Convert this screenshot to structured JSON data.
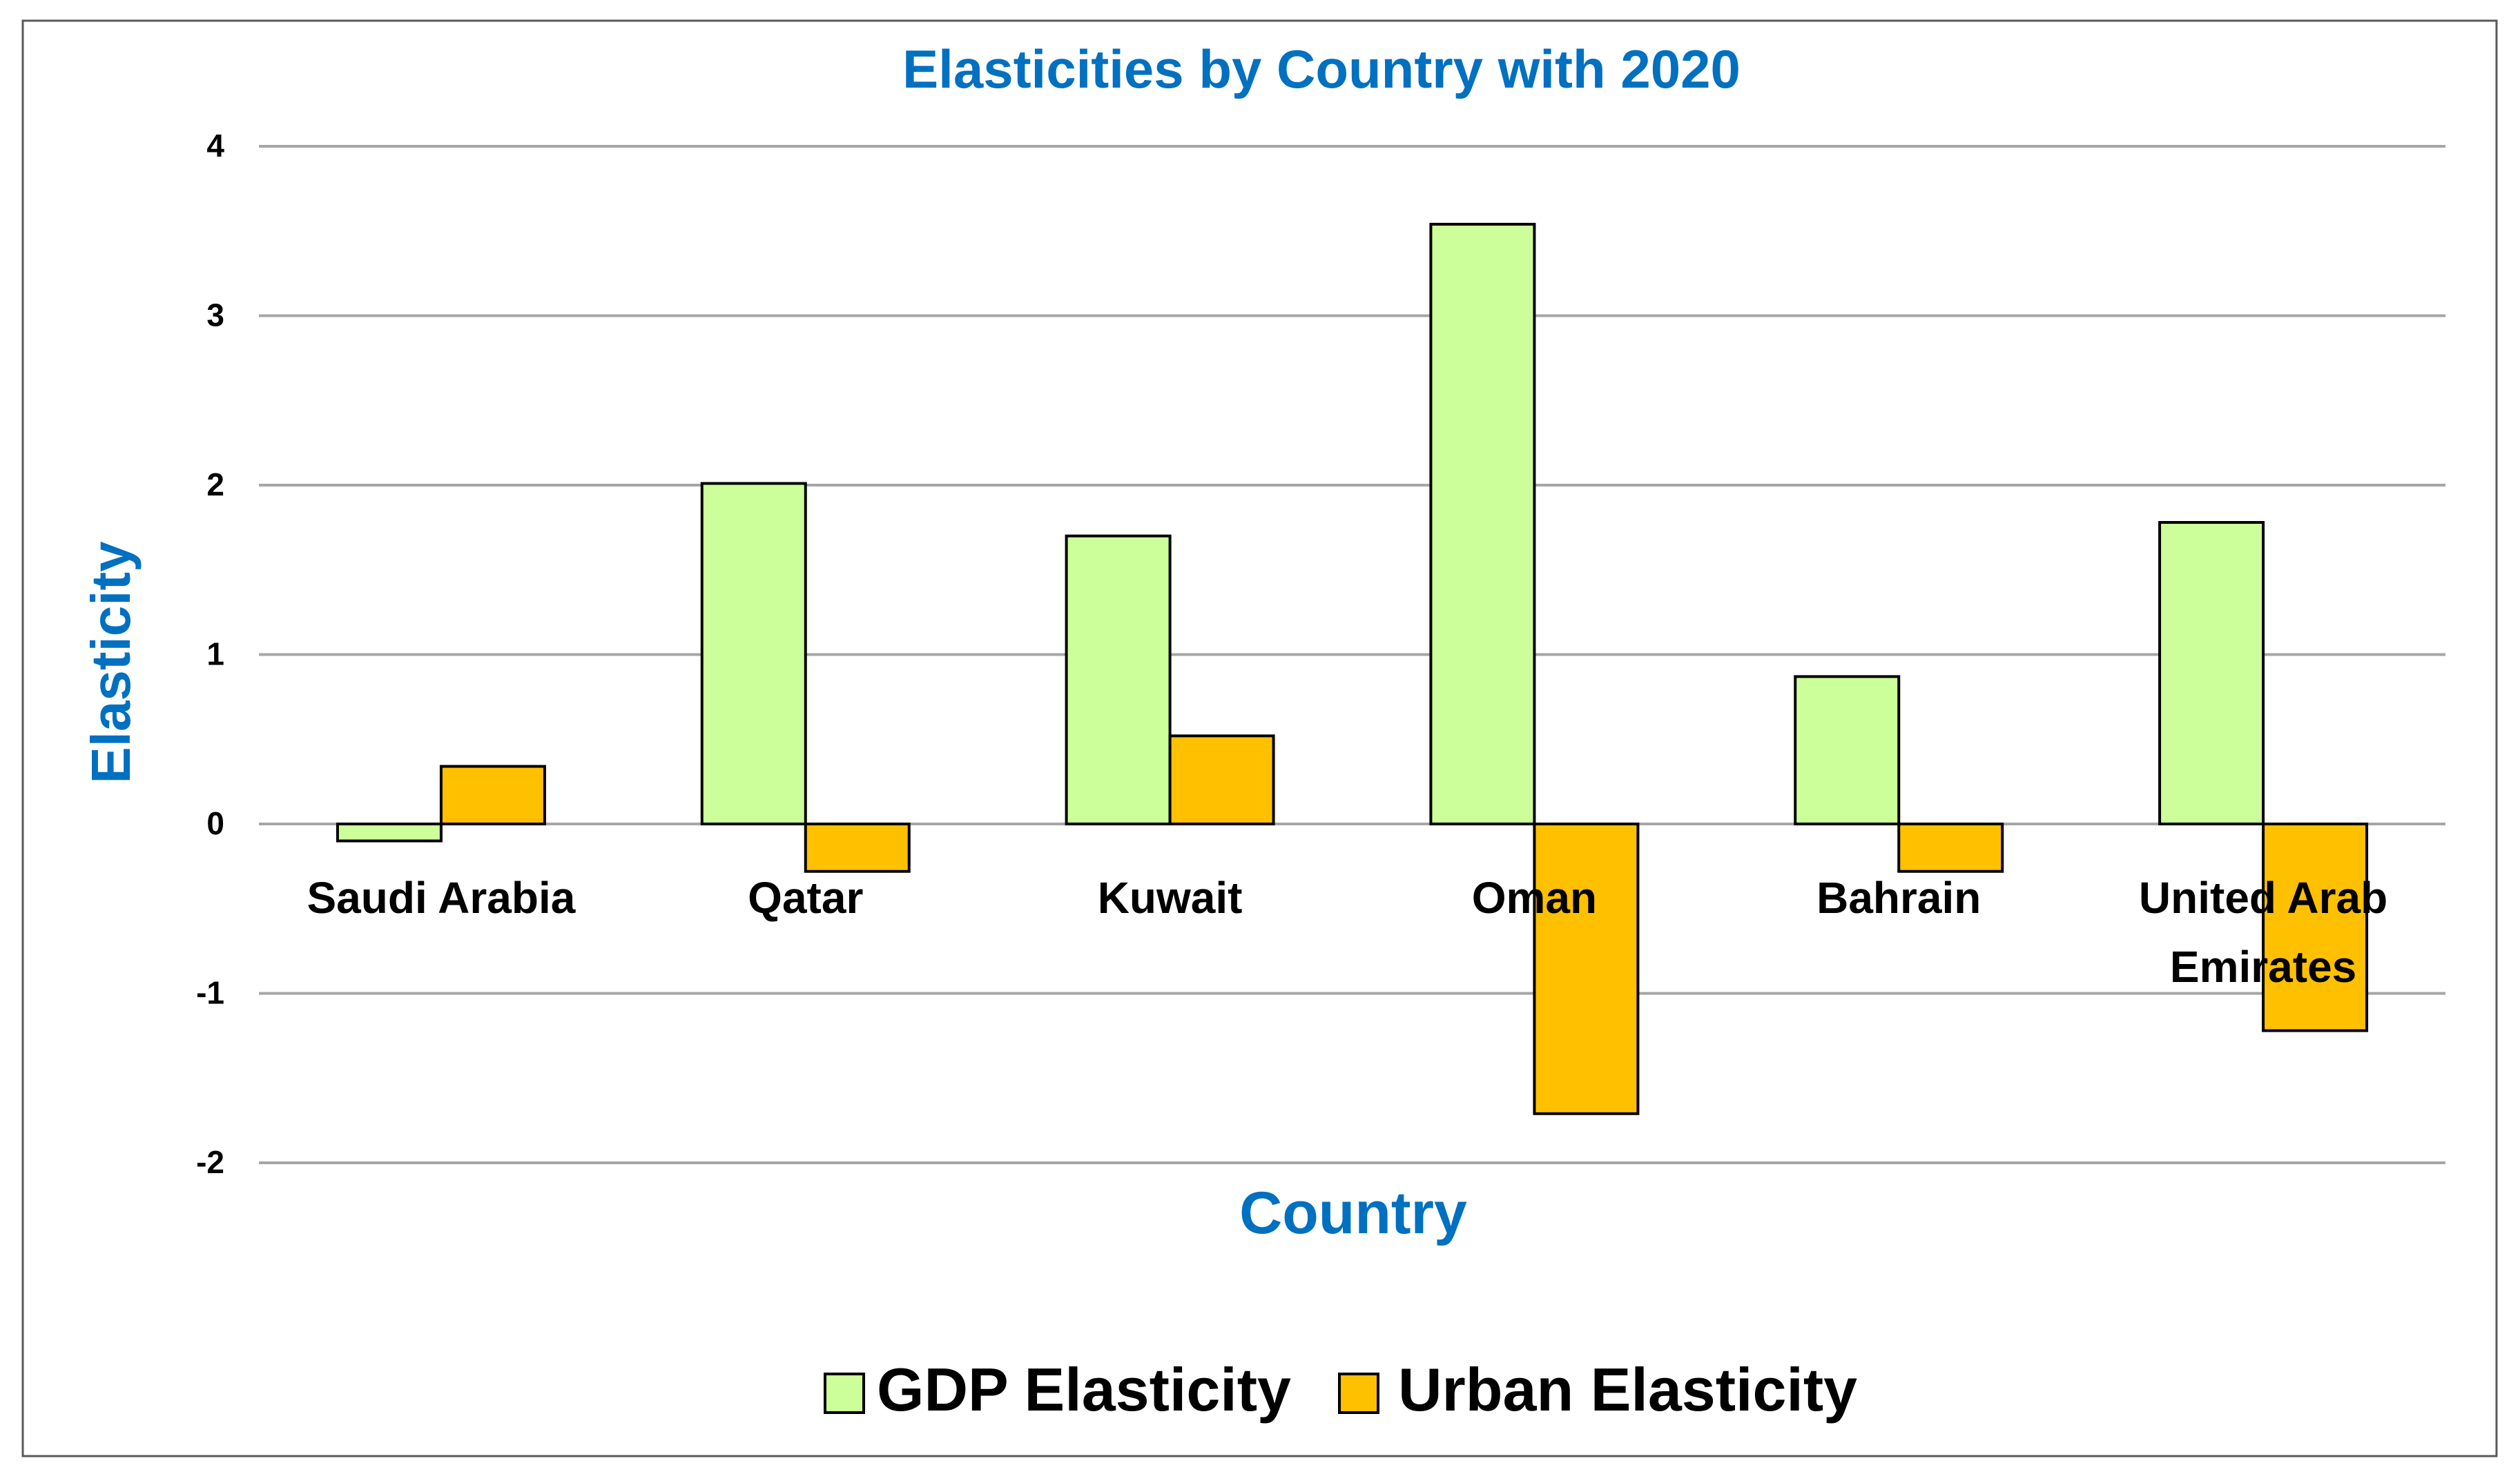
{
  "chart_data": {
    "type": "bar",
    "title": "Elasticities by Country with 2020",
    "xlabel": "Country",
    "ylabel": "Elasticity",
    "categories": [
      "Saudi Arabia",
      "Qatar",
      "Kuwait",
      "Oman",
      "Bahrain",
      "United Arab Emirates"
    ],
    "category_lines": [
      [
        "Saudi Arabia"
      ],
      [
        "Qatar"
      ],
      [
        "Kuwait"
      ],
      [
        "Oman"
      ],
      [
        "Bahrain"
      ],
      [
        "United Arab",
        "Emirates"
      ]
    ],
    "series": [
      {
        "name": "GDP Elasticity",
        "color": "#CCFF99",
        "values": [
          -0.1,
          2.01,
          1.7,
          3.54,
          0.87,
          1.78
        ]
      },
      {
        "name": "Urban Elasticity",
        "color": "#FFC000",
        "values": [
          0.34,
          -0.28,
          0.52,
          -1.71,
          -0.28,
          -1.22
        ]
      }
    ],
    "ylim": [
      -2,
      4
    ],
    "yticks": [
      -2,
      -1,
      0,
      1,
      2,
      3,
      4
    ],
    "grid": true,
    "legend": "bottom",
    "title_color": "#0070C0",
    "axis_label_color": "#0070C0",
    "gridline_color": "#A6A6A6",
    "bar_stroke_color": "#000000"
  }
}
